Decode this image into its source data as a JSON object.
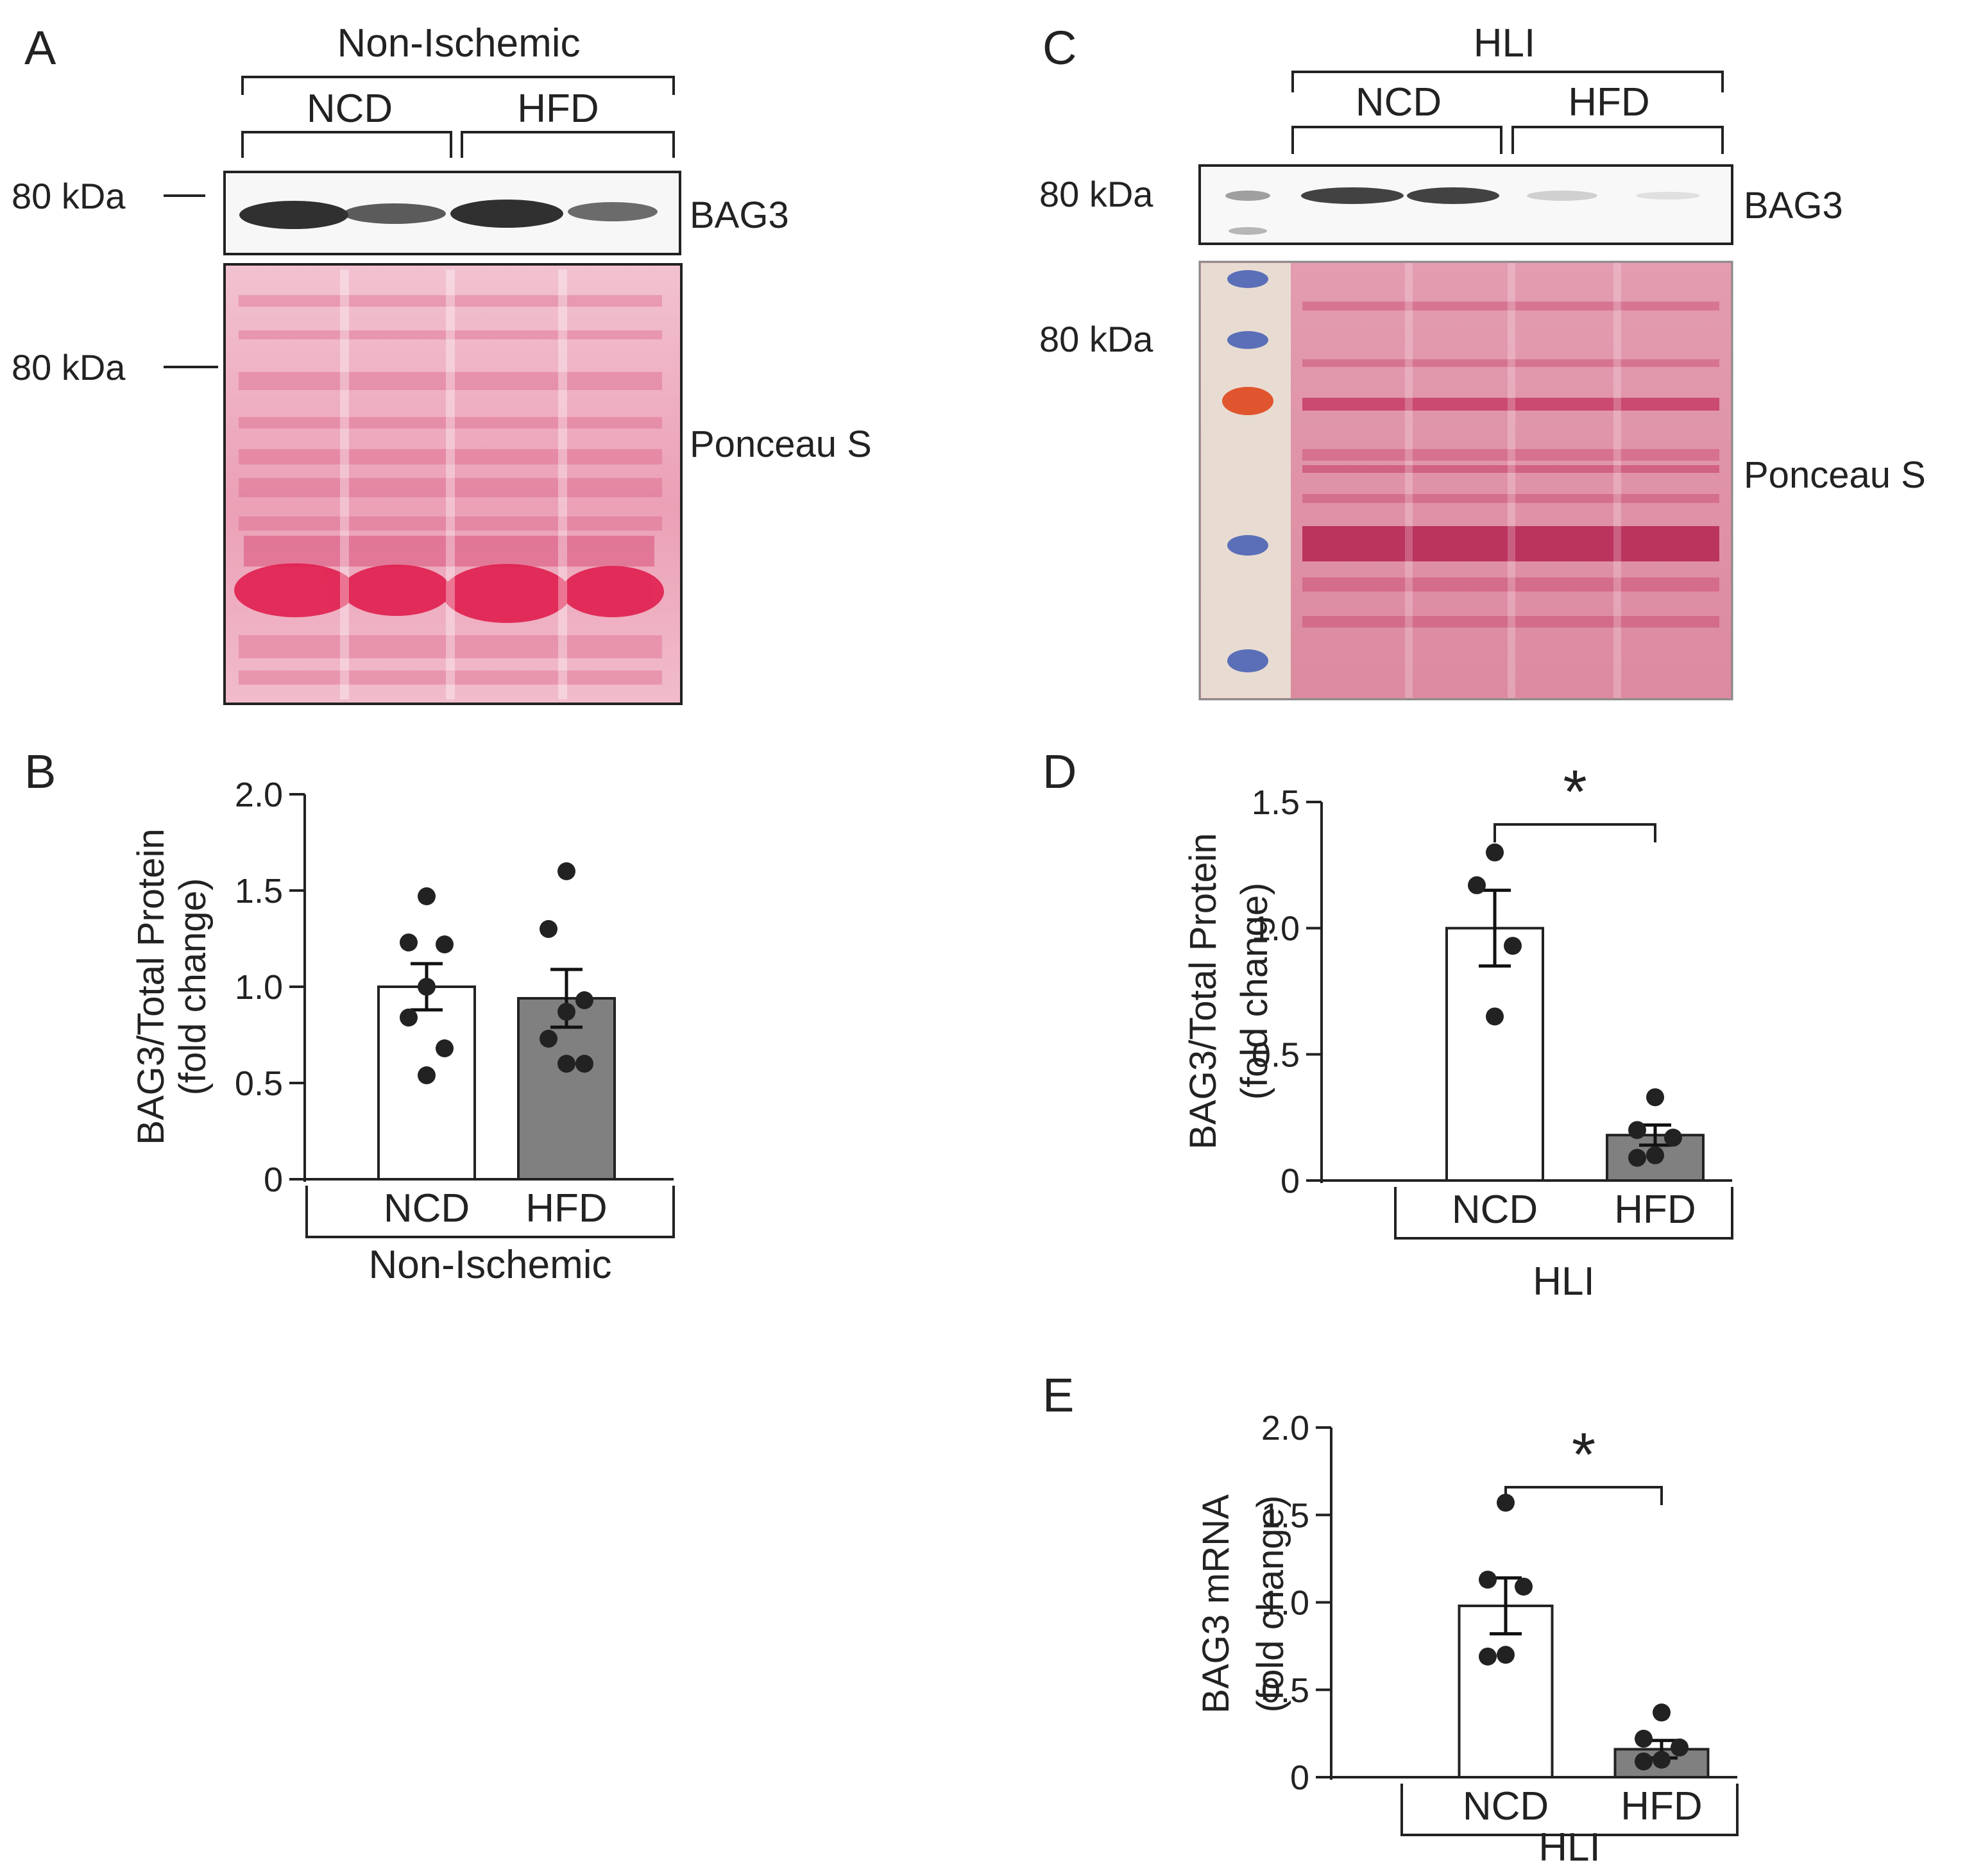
{
  "panels": {
    "A": {
      "letter": "A",
      "group": "Non-Ischemic",
      "sub_groups": [
        "NCD",
        "HFD"
      ],
      "marker_top": "80 kDa",
      "marker_bottom": "80 kDa",
      "blot_label": "BAG3",
      "stain_label": "Ponceau S"
    },
    "C": {
      "letter": "C",
      "group": "HLI",
      "sub_groups": [
        "NCD",
        "HFD"
      ],
      "marker_top": "80 kDa",
      "marker_bottom": "80 kDa",
      "blot_label": "BAG3",
      "stain_label": "Ponceau S"
    },
    "B": {
      "letter": "B"
    },
    "D": {
      "letter": "D"
    },
    "E": {
      "letter": "E"
    }
  },
  "colors": {
    "ncd_bar": "#ffffff",
    "hfd_bar": "#808080",
    "points": "#222222",
    "ponceau": "#d8507a"
  },
  "chart_data": [
    {
      "id": "B",
      "type": "bar",
      "title": "",
      "ylabel": [
        "BAG3/Total Protein",
        "(fold change)"
      ],
      "xlabel": "Non-Ischemic",
      "categories": [
        "NCD",
        "HFD"
      ],
      "values": [
        1.0,
        0.94
      ],
      "sem": [
        0.12,
        0.15
      ],
      "points": [
        [
          1.47,
          1.23,
          1.22,
          1.0,
          0.84,
          0.68,
          0.54
        ],
        [
          1.6,
          1.3,
          0.93,
          0.87,
          0.73,
          0.6,
          0.6
        ]
      ],
      "ylim": [
        0,
        2.0
      ],
      "yticks": [
        "0",
        "0.5",
        "1.0",
        "1.5",
        "2.0"
      ],
      "significance": ""
    },
    {
      "id": "D",
      "type": "bar",
      "title": "",
      "ylabel": [
        "BAG3/Total Protein",
        "(fold change)"
      ],
      "xlabel": "HLI",
      "categories": [
        "NCD",
        "HFD"
      ],
      "values": [
        1.0,
        0.18
      ],
      "sem": [
        0.15,
        0.04
      ],
      "points": [
        [
          1.3,
          1.17,
          0.93,
          0.65
        ],
        [
          0.33,
          0.2,
          0.17,
          0.1,
          0.09
        ]
      ],
      "ylim": [
        0,
        1.5
      ],
      "yticks": [
        "0",
        "0.5",
        "1.0",
        "1.5"
      ],
      "significance": "*"
    },
    {
      "id": "E",
      "type": "bar",
      "title": "",
      "ylabel": [
        "BAG3 mRNA",
        "(fold change)"
      ],
      "xlabel": "HLI",
      "categories": [
        "NCD",
        "HFD"
      ],
      "values": [
        0.98,
        0.16
      ],
      "sem": [
        0.16,
        0.05
      ],
      "points": [
        [
          1.57,
          1.13,
          1.09,
          0.7,
          0.69
        ],
        [
          0.37,
          0.22,
          0.17,
          0.1,
          0.09
        ]
      ],
      "ylim": [
        0,
        2.0
      ],
      "yticks": [
        "0",
        "0.5",
        "1.0",
        "1.5",
        "2.0"
      ],
      "significance": "*"
    }
  ]
}
